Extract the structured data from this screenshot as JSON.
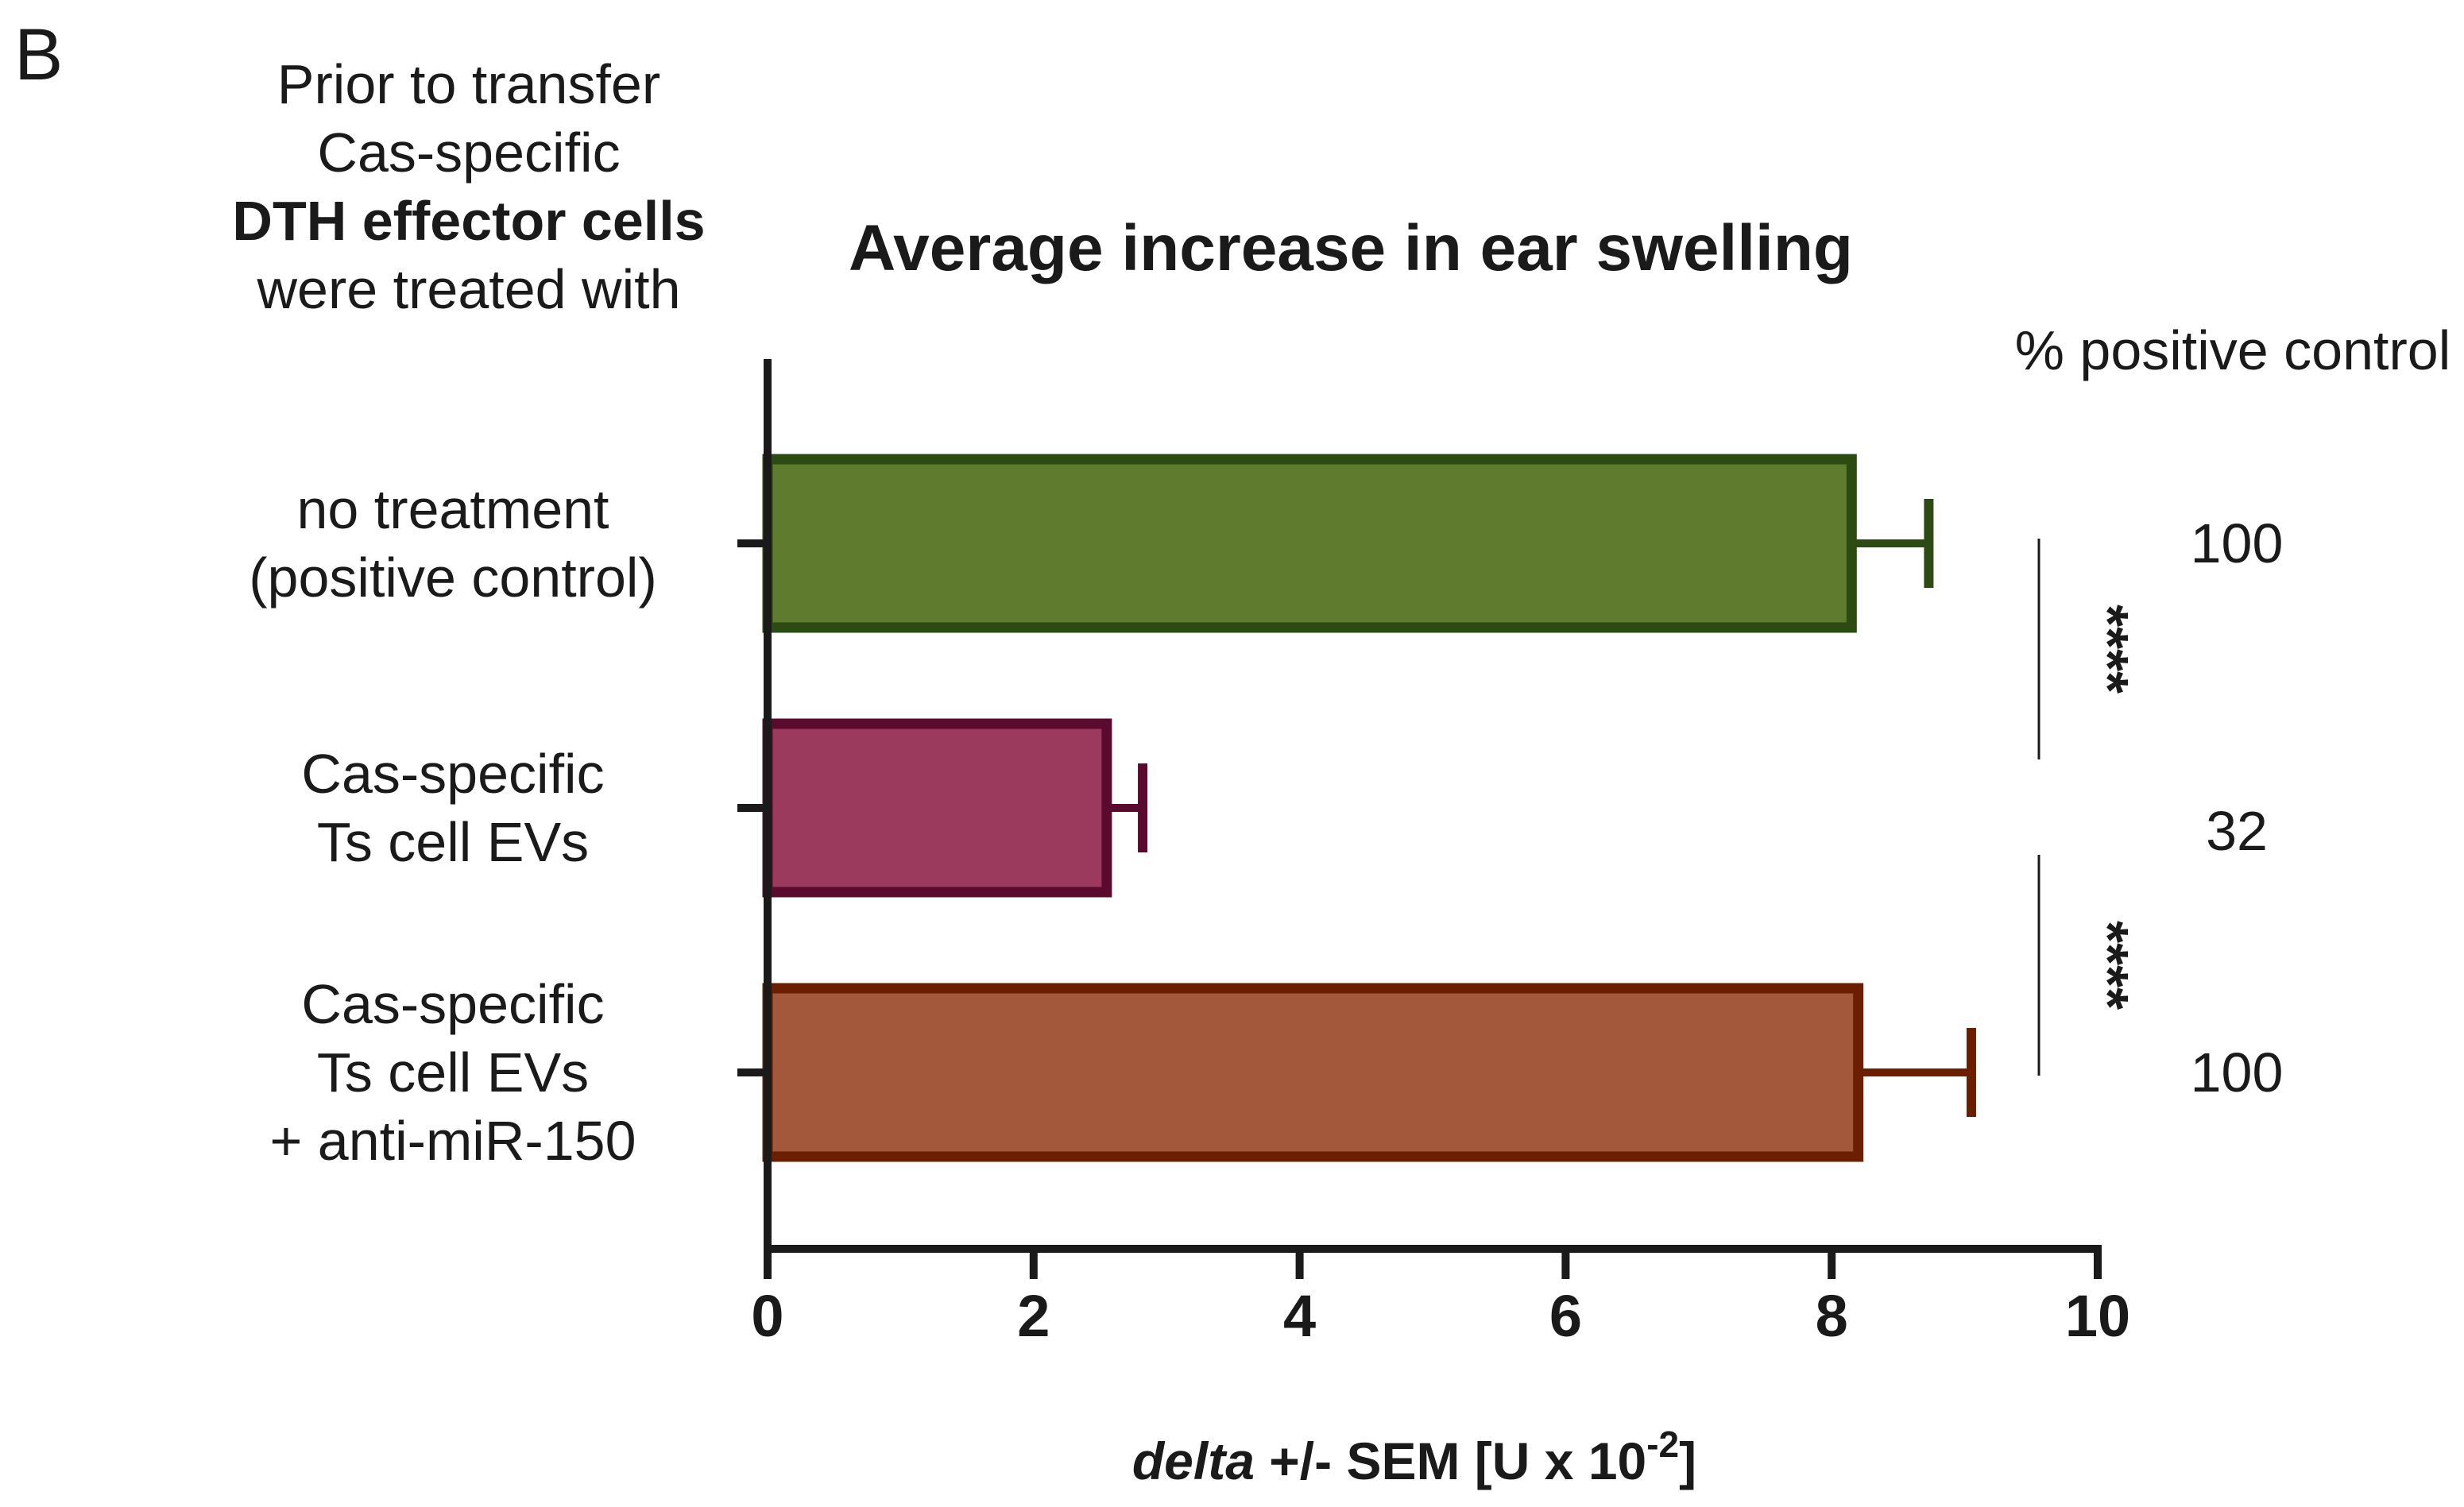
{
  "panel_label": "B",
  "treatment_header": {
    "line1": "Prior to transfer",
    "line2": "Cas-specific",
    "line3": "DTH effector cells",
    "line4": "were treated with"
  },
  "percent_header": "% positive control",
  "chart_data": {
    "type": "bar",
    "orientation": "horizontal",
    "title": "Average increase in ear swelling",
    "xlabel": {
      "italic": "delta",
      "main": " +/- SEM [U x 10",
      "superscript": "-2",
      "end": "]"
    },
    "xlim": [
      0,
      10
    ],
    "xticks": [
      "0",
      "2",
      "4",
      "6",
      "8",
      "10"
    ],
    "bars": [
      {
        "label_lines": [
          "no treatment",
          "(positive control)"
        ],
        "value": 8.15,
        "sem": 0.58,
        "fill": "#5e7b2e",
        "stroke": "#2c4b12",
        "percent": "100"
      },
      {
        "label_lines": [
          "Cas-specific",
          "Ts cell EVs"
        ],
        "value": 2.55,
        "sem": 0.27,
        "fill": "#9b3a5c",
        "stroke": "#5a0a2c",
        "percent": "32"
      },
      {
        "label_lines": [
          "Cas-specific",
          "Ts cell EVs",
          "+ anti-miR-150"
        ],
        "value": 8.2,
        "sem": 0.85,
        "fill": "#a3573b",
        "stroke": "#6b1f00",
        "percent": "100"
      }
    ],
    "significance": [
      {
        "between": [
          0,
          1
        ],
        "label": "****"
      },
      {
        "between": [
          1,
          2
        ],
        "label": "****"
      }
    ]
  }
}
